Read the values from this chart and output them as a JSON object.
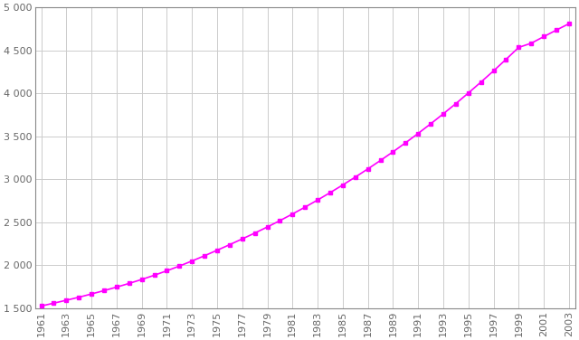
{
  "years": [
    1961,
    1962,
    1963,
    1964,
    1965,
    1966,
    1967,
    1968,
    1969,
    1970,
    1971,
    1972,
    1973,
    1974,
    1975,
    1976,
    1977,
    1978,
    1979,
    1980,
    1981,
    1982,
    1983,
    1984,
    1985,
    1986,
    1987,
    1988,
    1989,
    1990,
    1991,
    1992,
    1993,
    1994,
    1995,
    1996,
    1997,
    1998,
    1999,
    2000,
    2001,
    2002,
    2003
  ],
  "population": [
    1524,
    1557,
    1591,
    1626,
    1664,
    1703,
    1744,
    1787,
    1833,
    1882,
    1934,
    1989,
    2048,
    2109,
    2173,
    2238,
    2305,
    2373,
    2444,
    2518,
    2595,
    2675,
    2758,
    2844,
    2933,
    3025,
    3120,
    3218,
    3319,
    3424,
    3533,
    3645,
    3761,
    3880,
    4004,
    4131,
    4261,
    4396,
    4534,
    4583,
    4660,
    4736,
    4810
  ],
  "line_color": "#FF00FF",
  "marker": "s",
  "marker_size": 3.5,
  "ylim_min": 1500,
  "ylim_max": 5000,
  "yticks": [
    1500,
    2000,
    2500,
    3000,
    3500,
    4000,
    4500,
    5000
  ],
  "ytick_labels": [
    "1 500",
    "2 000",
    "2 500",
    "3 000",
    "3 500",
    "4 000",
    "4 500",
    "5 000"
  ],
  "xtick_years": [
    1961,
    1963,
    1965,
    1967,
    1969,
    1971,
    1973,
    1975,
    1977,
    1979,
    1981,
    1983,
    1985,
    1987,
    1989,
    1991,
    1993,
    1995,
    1997,
    1999,
    2001,
    2003
  ],
  "background_color": "#FFFFFF",
  "grid_color": "#CCCCCC",
  "tick_label_color": "#666666",
  "linewidth": 1.2,
  "spine_color": "#888888"
}
